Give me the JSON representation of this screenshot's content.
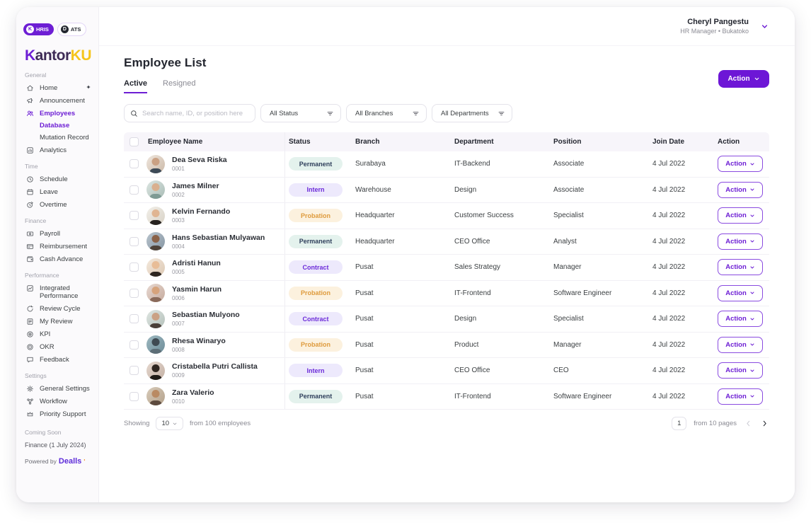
{
  "sidebar": {
    "workspace_pills": [
      {
        "label": "HRIS",
        "logo": "K",
        "active": true
      },
      {
        "label": "ATS",
        "logo": "D",
        "active": false
      }
    ],
    "logo": {
      "k": "K",
      "rest": "antor",
      "suffix": "KU"
    },
    "sections": [
      {
        "label": "General",
        "items": [
          {
            "label": "Home",
            "icon": "home-icon",
            "badge": "sparkle"
          },
          {
            "label": "Announcement",
            "icon": "megaphone-icon"
          },
          {
            "label": "Employees",
            "icon": "people-icon",
            "active": true,
            "children": [
              {
                "label": "Database",
                "active": true
              },
              {
                "label": "Mutation Record",
                "active": false
              }
            ]
          },
          {
            "label": "Analytics",
            "icon": "analytics-icon"
          }
        ]
      },
      {
        "label": "Time",
        "items": [
          {
            "label": "Schedule",
            "icon": "clock-icon"
          },
          {
            "label": "Leave",
            "icon": "calendar-icon"
          },
          {
            "label": "Overtime",
            "icon": "overtime-clock-icon"
          }
        ]
      },
      {
        "label": "Finance",
        "items": [
          {
            "label": "Payroll",
            "icon": "banknote-icon"
          },
          {
            "label": "Reimbursement",
            "icon": "credit-card-icon"
          },
          {
            "label": "Cash Advance",
            "icon": "wallet-icon"
          }
        ]
      },
      {
        "label": "Performance",
        "items": [
          {
            "label": "Integrated Performance",
            "icon": "performance-chart-icon"
          },
          {
            "label": "Review Cycle",
            "icon": "cycle-icon"
          },
          {
            "label": "My Review",
            "icon": "document-icon"
          },
          {
            "label": "KPI",
            "icon": "target-icon"
          },
          {
            "label": "OKR",
            "icon": "rings-icon"
          },
          {
            "label": "Feedback",
            "icon": "chat-bubble-icon"
          }
        ]
      },
      {
        "label": "Settings",
        "items": [
          {
            "label": "General Settings",
            "icon": "gear-icon"
          },
          {
            "label": "Workflow",
            "icon": "workflow-icon"
          },
          {
            "label": "Priority Support",
            "icon": "crown-icon"
          }
        ]
      }
    ],
    "coming_soon": {
      "label": "Coming Soon",
      "item": "Finance (1 July 2024)"
    },
    "powered_by": {
      "prefix": "Powered by",
      "brand": "Dealls",
      "tick": "'"
    }
  },
  "header": {
    "user_name": "Cheryl Pangestu",
    "user_role": "HR Manager • Bukatoko"
  },
  "page": {
    "title": "Employee List",
    "tabs": [
      {
        "label": "Active",
        "active": true
      },
      {
        "label": "Resigned",
        "active": false
      }
    ],
    "action_button_label": "Action"
  },
  "filters": {
    "search_placeholder": "Search name, ID, or position here",
    "dropdowns": [
      "All Status",
      "All Branches",
      "All Departments"
    ]
  },
  "table": {
    "columns": [
      "Employee Name",
      "Status",
      "Branch",
      "Department",
      "Position",
      "Join Date",
      "Action"
    ],
    "row_action_label": "Action",
    "status_styles": {
      "Permanent": {
        "bg": "#E4F2ED",
        "text": "#30405C"
      },
      "Intern": {
        "bg": "#EDE9FC",
        "text": "#6C2BD9"
      },
      "Probation": {
        "bg": "#FCF1DE",
        "text": "#DE9A3C"
      },
      "Contract": {
        "bg": "#EDE9FC",
        "text": "#6C2BD9"
      }
    },
    "rows": [
      {
        "name": "Dea Seva Riska",
        "id": "0001",
        "status": "Permanent",
        "branch": "Surabaya",
        "department": "IT-Backend",
        "position": "Associate",
        "join_date": "4 Jul 2022"
      },
      {
        "name": "James Milner",
        "id": "0002",
        "status": "Intern",
        "branch": "Warehouse",
        "department": "Design",
        "position": "Associate",
        "join_date": "4 Jul 2022"
      },
      {
        "name": "Kelvin Fernando",
        "id": "0003",
        "status": "Probation",
        "branch": "Headquarter",
        "department": "Customer Success",
        "position": "Specialist",
        "join_date": "4 Jul 2022"
      },
      {
        "name": "Hans Sebastian Mulyawan",
        "id": "0004",
        "status": "Permanent",
        "branch": "Headquarter",
        "department": "CEO Office",
        "position": "Analyst",
        "join_date": "4 Jul 2022"
      },
      {
        "name": "Adristi Hanun",
        "id": "0005",
        "status": "Contract",
        "branch": "Pusat",
        "department": "Sales Strategy",
        "position": "Manager",
        "join_date": "4 Jul 2022"
      },
      {
        "name": "Yasmin Harun",
        "id": "0006",
        "status": "Probation",
        "branch": "Pusat",
        "department": "IT-Frontend",
        "position": "Software Engineer",
        "join_date": "4 Jul 2022"
      },
      {
        "name": "Sebastian Mulyono",
        "id": "0007",
        "status": "Contract",
        "branch": "Pusat",
        "department": "Design",
        "position": "Specialist",
        "join_date": "4 Jul 2022"
      },
      {
        "name": "Rhesa Winaryo",
        "id": "0008",
        "status": "Probation",
        "branch": "Pusat",
        "department": "Product",
        "position": "Manager",
        "join_date": "4 Jul 2022"
      },
      {
        "name": "Cristabella Putri Callista",
        "id": "0009",
        "status": "Intern",
        "branch": "Pusat",
        "department": "CEO Office",
        "position": "CEO",
        "join_date": "4 Jul 2022"
      },
      {
        "name": "Zara Valerio",
        "id": "0010",
        "status": "Permanent",
        "branch": "Pusat",
        "department": "IT-Frontend",
        "position": "Software Engineer",
        "join_date": "4 Jul 2022"
      }
    ]
  },
  "pagination": {
    "showing_label": "Showing",
    "page_size": "10",
    "total_label": "from 100 employees",
    "current_page": "1",
    "pages_label": "from 10 pages"
  },
  "colors": {
    "primary_purple": "#6D1ED4",
    "logo_yellow": "#F5C51D",
    "dealls_purple": "#5D2BD9",
    "dealls_tick_orange": "#F08A1D"
  }
}
